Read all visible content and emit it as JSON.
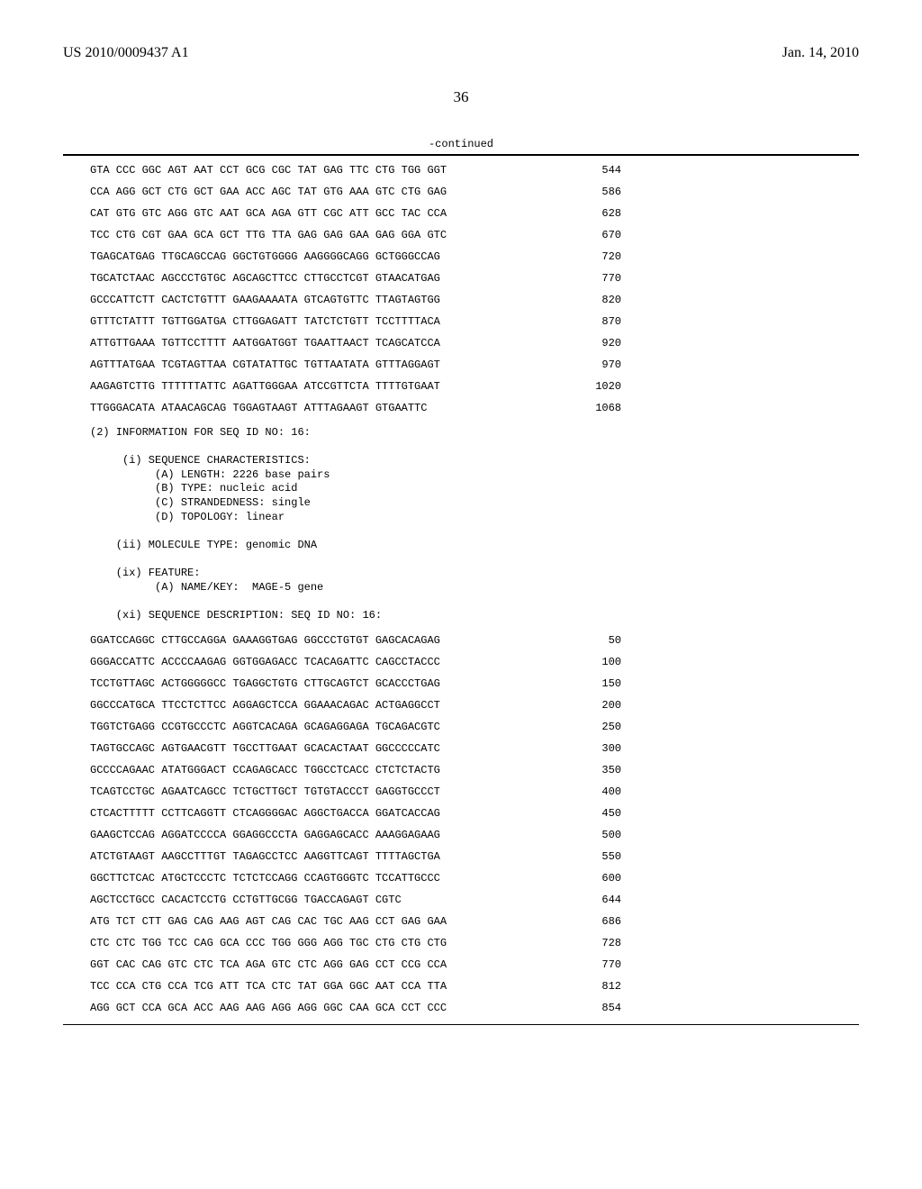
{
  "header": {
    "pub_number": "US 2010/0009437 A1",
    "pub_date": "Jan. 14, 2010"
  },
  "page_number": "36",
  "continued_label": "-continued",
  "seq_top": [
    {
      "seq": "GTA CCC GGC AGT AAT CCT GCG CGC TAT GAG TTC CTG TGG GGT",
      "num": "544"
    },
    {
      "seq": "CCA AGG GCT CTG GCT GAA ACC AGC TAT GTG AAA GTC CTG GAG",
      "num": "586"
    },
    {
      "seq": "CAT GTG GTC AGG GTC AAT GCA AGA GTT CGC ATT GCC TAC CCA",
      "num": "628"
    },
    {
      "seq": "TCC CTG CGT GAA GCA GCT TTG TTA GAG GAG GAA GAG GGA GTC",
      "num": "670"
    },
    {
      "seq": "TGAGCATGAG TTGCAGCCAG GGCTGTGGGG AAGGGGCAGG GCTGGGCCAG",
      "num": "720"
    },
    {
      "seq": "TGCATCTAAC AGCCCTGTGC AGCAGCTTCC CTTGCCTCGT GTAACATGAG",
      "num": "770"
    },
    {
      "seq": "GCCCATTCTT CACTCTGTTT GAAGAAAATA GTCAGTGTTC TTAGTAGTGG",
      "num": "820"
    },
    {
      "seq": "GTTTCTATTT TGTTGGATGA CTTGGAGATT TATCTCTGTT TCCTTTTACA",
      "num": "870"
    },
    {
      "seq": "ATTGTTGAAA TGTTCCTTTT AATGGATGGT TGAATTAACT TCAGCATCCA",
      "num": "920"
    },
    {
      "seq": "AGTTTATGAA TCGTAGTTAA CGTATATTGC TGTTAATATA GTTTAGGAGT",
      "num": "970"
    },
    {
      "seq": "AAGAGTCTTG TTTTTTATTC AGATTGGGAA ATCCGTTCTA TTTTGTGAAT",
      "num": "1020"
    },
    {
      "seq": "TTGGGACATA ATAACAGCAG TGGAGTAAGT ATTTAGAAGT GTGAATTC",
      "num": "1068"
    }
  ],
  "info_block": {
    "title": "(2) INFORMATION FOR SEQ ID NO: 16:",
    "char_header": "(i) SEQUENCE CHARACTERISTICS:",
    "length": "(A) LENGTH: 2226 base pairs",
    "type": "(B) TYPE: nucleic acid",
    "strand": "(C) STRANDEDNESS: single",
    "topology": "(D) TOPOLOGY: linear",
    "mol_type": "(ii) MOLECULE TYPE: genomic DNA",
    "feature_header": "(ix) FEATURE:",
    "feature_name": "(A) NAME/KEY:  MAGE-5 gene",
    "seq_desc": "(xi) SEQUENCE DESCRIPTION: SEQ ID NO: 16:"
  },
  "seq_bottom": [
    {
      "seq": "GGATCCAGGC CTTGCCAGGA GAAAGGTGAG GGCCCTGTGT GAGCACAGAG",
      "num": "50"
    },
    {
      "seq": "GGGACCATTC ACCCCAAGAG GGTGGAGACC TCACAGATTC CAGCCTACCC",
      "num": "100"
    },
    {
      "seq": "TCCTGTTAGC ACTGGGGGCC TGAGGCTGTG CTTGCAGTCT GCACCCTGAG",
      "num": "150"
    },
    {
      "seq": "GGCCCATGCA TTCCTCTTCC AGGAGCTCCA GGAAACAGAC ACTGAGGCCT",
      "num": "200"
    },
    {
      "seq": "TGGTCTGAGG CCGTGCCCTC AGGTCACAGA GCAGAGGAGA TGCAGACGTC",
      "num": "250"
    },
    {
      "seq": "TAGTGCCAGC AGTGAACGTT TGCCTTGAAT GCACACTAAT GGCCCCCATC",
      "num": "300"
    },
    {
      "seq": "GCCCCAGAAC ATATGGGACT CCAGAGCACC TGGCCTCACC CTCTCTACTG",
      "num": "350"
    },
    {
      "seq": "TCAGTCCTGC AGAATCAGCC TCTGCTTGCT TGTGTACCCT GAGGTGCCCT",
      "num": "400"
    },
    {
      "seq": "CTCACTTTTT CCTTCAGGTT CTCAGGGGAC AGGCTGACCA GGATCACCAG",
      "num": "450"
    },
    {
      "seq": "GAAGCTCCAG AGGATCCCCA GGAGGCCCTA GAGGAGCACC AAAGGAGAAG",
      "num": "500"
    },
    {
      "seq": "ATCTGTAAGT AAGCCTTTGT TAGAGCCTCC AAGGTTCAGT TTTTAGCTGA",
      "num": "550"
    },
    {
      "seq": "GGCTTCTCAC ATGCTCCCTC TCTCTCCAGG CCAGTGGGTC TCCATTGCCC",
      "num": "600"
    },
    {
      "seq": "AGCTCCTGCC CACACTCCTG CCTGTTGCGG TGACCAGAGT CGTC",
      "num": "644"
    },
    {
      "seq": "ATG TCT CTT GAG CAG AAG AGT CAG CAC TGC AAG CCT GAG GAA",
      "num": "686"
    },
    {
      "seq": "CTC CTC TGG TCC CAG GCA CCC TGG GGG AGG TGC CTG CTG CTG",
      "num": "728"
    },
    {
      "seq": "GGT CAC CAG GTC CTC TCA AGA GTC CTC AGG GAG CCT CCG CCA",
      "num": "770"
    },
    {
      "seq": "TCC CCA CTG CCA TCG ATT TCA CTC TAT GGA GGC AAT CCA TTA",
      "num": "812"
    },
    {
      "seq": "AGG GCT CCA GCA ACC AAG AAG AGG AGG GGC CAA GCA CCT CCC",
      "num": "854"
    }
  ]
}
